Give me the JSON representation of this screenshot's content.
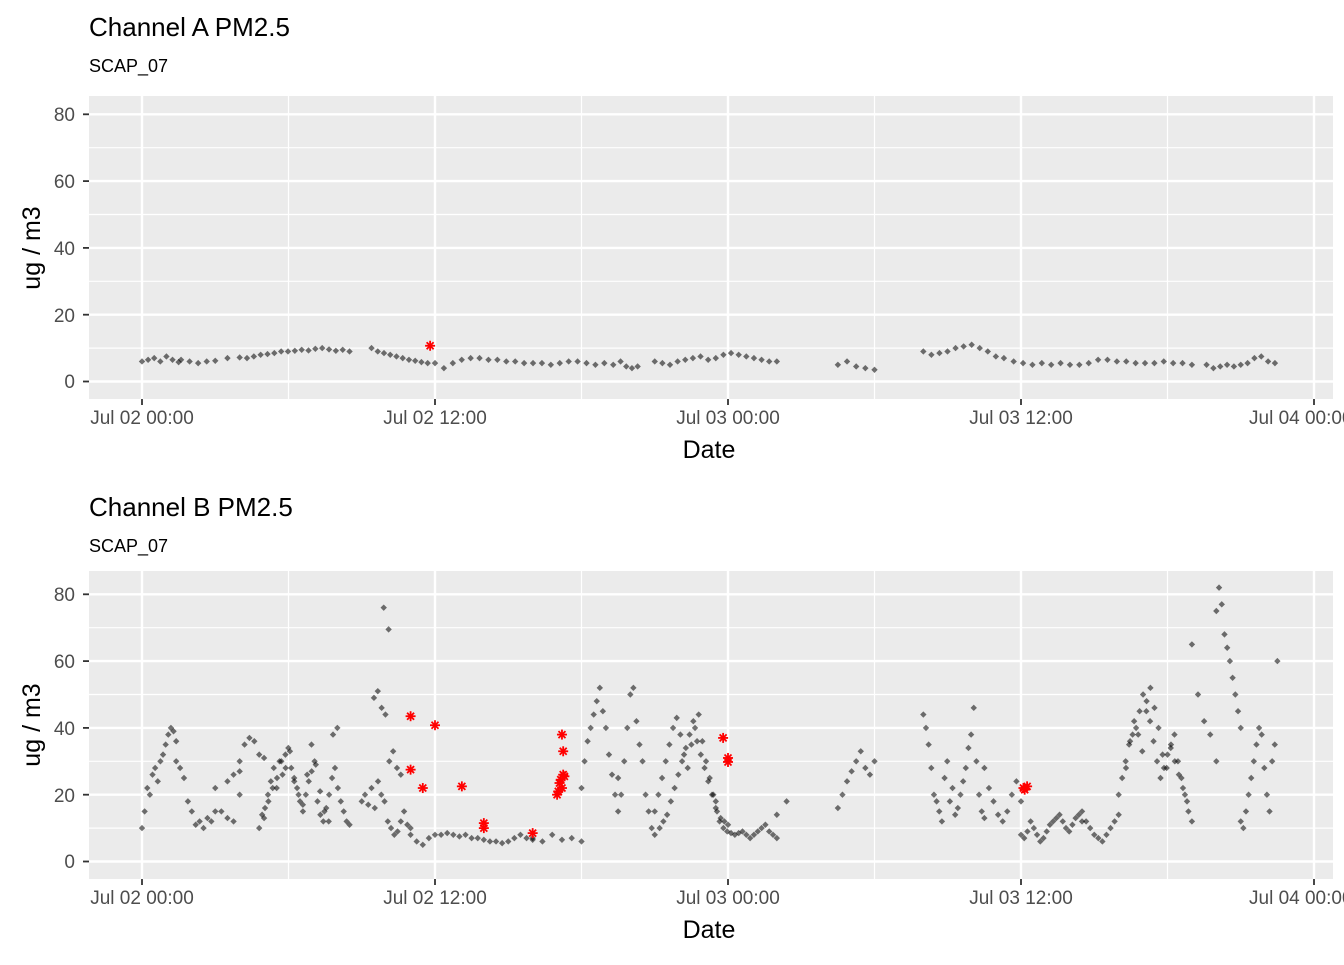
{
  "chart_data": [
    {
      "type": "scatter",
      "title": "Channel A PM2.5",
      "subtitle": "SCAP_07",
      "xlabel": "Date",
      "ylabel": "ug / m3",
      "ylim": [
        -4,
        86
      ],
      "y_ticks": [
        0,
        20,
        40,
        60,
        80
      ],
      "x_ticks": [
        "Jul 02 00:00",
        "Jul 02 12:00",
        "Jul 03 00:00",
        "Jul 03 12:00",
        "Jul 04 00:00"
      ],
      "x_hours_range": [
        -2.6,
        48.3
      ],
      "x_unit": "hours since Jul 02 00:00",
      "grid": true,
      "colors": {
        "panel": "#ebebeb",
        "grid": "#ffffff",
        "points": "#000000",
        "outliers": "#ff0000"
      },
      "series": [
        {
          "style": "small gray diamonds",
          "segments": [
            {
              "start": 0.0,
              "end": 1.5,
              "values": [
                6,
                6.5,
                7,
                6,
                7.5,
                6.5,
                5.8
              ]
            },
            {
              "start": 1.6,
              "end": 3.0,
              "values": [
                6.5,
                6,
                5.5,
                6,
                6.2
              ]
            },
            {
              "start": 3.5,
              "end": 4.0,
              "values": [
                7,
                7.2
              ]
            },
            {
              "start": 4.3,
              "end": 8.5,
              "values": [
                7,
                7.5,
                8,
                8.2,
                8.5,
                9,
                9,
                9.2,
                9.5,
                9.3,
                9.8,
                10,
                9.6,
                9.2,
                9.5,
                9
              ]
            },
            {
              "start": 9.4,
              "end": 11.7,
              "values": [
                10,
                9,
                8.5,
                8,
                7.5,
                7,
                6.5,
                6.2,
                5.8,
                5.5
              ]
            },
            {
              "start": 12.0,
              "end": 19.3,
              "values": [
                5.5,
                4,
                5.5,
                6.5,
                7,
                7,
                6.5,
                6.5,
                6,
                6,
                5.5,
                5.5,
                5.5,
                5,
                5.5,
                6,
                6,
                5.5,
                5,
                5.5,
                5
              ]
            },
            {
              "start": 19.6,
              "end": 20.3,
              "values": [
                6,
                4.5,
                4,
                4.5
              ]
            },
            {
              "start": 21.0,
              "end": 26.0,
              "values": [
                6,
                5.5,
                5,
                6,
                6.5,
                7,
                7.5,
                6.5,
                7,
                8,
                8.5,
                8,
                7.5,
                7,
                6.5,
                6,
                6
              ]
            },
            {
              "start": 28.5,
              "end": 30.0,
              "values": [
                5,
                6,
                4.5,
                4,
                3.5
              ]
            },
            {
              "start": 32.0,
              "end": 35.3,
              "values": [
                9,
                8,
                8.5,
                9,
                10,
                10.5,
                11,
                10,
                9,
                7.5,
                7
              ]
            },
            {
              "start": 35.7,
              "end": 43.0,
              "values": [
                6,
                5.5,
                5,
                5.5,
                5,
                5.5,
                5,
                5,
                5.5,
                6.5,
                6.5,
                6,
                6,
                5.5,
                5.5,
                5.5,
                6,
                5.5,
                5.5,
                5
              ]
            },
            {
              "start": 43.6,
              "end": 46.4,
              "values": [
                5,
                4,
                4.5,
                5,
                4.5,
                5,
                5.5,
                7,
                7.5,
                6,
                5.5
              ]
            }
          ]
        },
        {
          "style": "red asterisks",
          "points": [
            {
              "x": 11.8,
              "y": 10.7
            }
          ]
        }
      ]
    },
    {
      "type": "scatter",
      "title": "Channel B PM2.5",
      "subtitle": "SCAP_07",
      "xlabel": "Date",
      "ylabel": "ug / m3",
      "ylim": [
        -4,
        86
      ],
      "y_ticks": [
        0,
        20,
        40,
        60,
        80
      ],
      "x_ticks": [
        "Jul 02 00:00",
        "Jul 02 12:00",
        "Jul 03 00:00",
        "Jul 03 12:00",
        "Jul 04 00:00"
      ],
      "x_hours_range": [
        -2.6,
        48.3
      ],
      "x_unit": "hours since Jul 02 00:00",
      "grid": true,
      "colors": {
        "panel": "#ebebeb",
        "grid": "#ffffff",
        "points": "#000000",
        "outliers": "#ff0000"
      },
      "series": [
        {
          "style": "small gray diamonds",
          "segments": [
            {
              "start": 0.0,
              "end": 1.4,
              "values": [
                10,
                15,
                22,
                20,
                26,
                28,
                24,
                30,
                32,
                35,
                38,
                40,
                39,
                36
              ]
            },
            {
              "start": 1.4,
              "end": 3.0,
              "values": [
                30,
                28,
                25,
                18,
                15,
                11,
                12,
                10,
                13,
                12,
                15
              ]
            },
            {
              "start": 3.0,
              "end": 4.0,
              "values": [
                22,
                15,
                13,
                12,
                20
              ]
            },
            {
              "start": 3.5,
              "end": 4.0,
              "values": [
                24,
                26,
                27
              ]
            },
            {
              "start": 4.0,
              "end": 5.0,
              "values": [
                30,
                35,
                37,
                36,
                32,
                31
              ]
            },
            {
              "start": 4.8,
              "end": 8.5,
              "values": [
                10,
                14,
                16,
                20,
                24,
                28,
                22,
                30,
                26,
                32,
                34,
                28,
                25,
                22,
                18,
                15,
                20,
                24,
                27,
                30,
                18,
                14,
                12,
                16,
                20,
                25,
                28,
                22,
                18,
                15,
                12,
                11
              ]
            },
            {
              "start": 5.0,
              "end": 8.0,
              "values": [
                13,
                18,
                22,
                25,
                30,
                28,
                33,
                24,
                20,
                17,
                26,
                35,
                29,
                21,
                15,
                12,
                38,
                40
              ]
            },
            {
              "start": 9.0,
              "end": 11.0,
              "values": [
                18,
                20,
                17,
                22,
                16,
                24,
                20,
                18,
                12,
                10,
                8,
                9,
                12,
                15,
                11,
                10
              ]
            },
            {
              "start": 9.5,
              "end": 10.6,
              "values": [
                49,
                51,
                46,
                44,
                30,
                33,
                28,
                26
              ]
            },
            {
              "start": 9.9,
              "end": 10.1,
              "values": [
                76,
                69.5
              ]
            },
            {
              "start": 11.0,
              "end": 16.0,
              "values": [
                8,
                6,
                5,
                7,
                8,
                8,
                8.5,
                8,
                7.5,
                8,
                7,
                7,
                6.5,
                6,
                6,
                5.5,
                6,
                7,
                8,
                7,
                6.5
              ]
            },
            {
              "start": 16.0,
              "end": 18.0,
              "values": [
                7,
                6,
                8,
                6.5,
                7,
                6
              ]
            },
            {
              "start": 18.0,
              "end": 19.5,
              "values": [
                22,
                30,
                36,
                40,
                44,
                48,
                52,
                45,
                40,
                32,
                26,
                20,
                15
              ]
            },
            {
              "start": 19.5,
              "end": 21.0,
              "values": [
                25,
                20,
                30,
                40,
                50,
                52,
                42,
                35,
                30,
                20,
                15,
                10,
                8
              ]
            },
            {
              "start": 21.0,
              "end": 24.0,
              "values": [
                15,
                20,
                25,
                30,
                35,
                40,
                43,
                38,
                32,
                28,
                35,
                40,
                44,
                36,
                30,
                25,
                20,
                15,
                13,
                12,
                11
              ]
            },
            {
              "start": 21.2,
              "end": 23.5,
              "values": [
                10,
                12,
                14,
                18,
                22,
                26,
                30,
                34,
                38,
                42,
                36,
                32,
                28,
                24,
                20,
                16
              ]
            },
            {
              "start": 23.5,
              "end": 26.0,
              "values": [
                18,
                12,
                10,
                9,
                8.5,
                8,
                8.5,
                9,
                8,
                7,
                8,
                9,
                10,
                11,
                9,
                8,
                7
              ]
            },
            {
              "start": 26.0,
              "end": 26.4,
              "values": [
                14,
                18
              ]
            },
            {
              "start": 28.5,
              "end": 30.0,
              "values": [
                16,
                20,
                24,
                27,
                30,
                33,
                28,
                26,
                30
              ]
            },
            {
              "start": 32.0,
              "end": 34.5,
              "values": [
                44,
                40,
                35,
                28,
                20,
                18,
                15,
                12,
                25,
                30,
                18,
                22,
                14,
                16,
                20,
                24,
                28,
                34,
                38,
                46,
                30,
                20,
                15,
                13
              ]
            },
            {
              "start": 34.5,
              "end": 36.0,
              "values": [
                28,
                22,
                18,
                14,
                12,
                15,
                20,
                24,
                18
              ]
            },
            {
              "start": 36.0,
              "end": 38.5,
              "values": [
                8,
                7,
                9,
                12,
                10,
                8,
                6,
                7,
                9,
                11,
                12,
                13,
                14,
                12,
                10,
                9,
                11,
                13,
                14,
                12
              ]
            },
            {
              "start": 38.5,
              "end": 40.0,
              "values": [
                15,
                12,
                10,
                8,
                7,
                6,
                8,
                10,
                12,
                14
              ]
            },
            {
              "start": 40.0,
              "end": 43.0,
              "values": [
                20,
                25,
                30,
                35,
                38,
                40,
                45,
                50,
                48,
                42,
                36,
                30,
                25,
                28,
                32,
                35,
                38,
                30,
                25,
                20,
                15,
                12
              ]
            },
            {
              "start": 40.3,
              "end": 42.8,
              "values": [
                28,
                36,
                42,
                38,
                33,
                45,
                52,
                46,
                40,
                32,
                28,
                34,
                30,
                26,
                22,
                18
              ]
            },
            {
              "start": 43.0,
              "end": 44.0,
              "values": [
                65,
                50,
                42,
                38,
                30
              ]
            },
            {
              "start": 44.0,
              "end": 45.0,
              "values": [
                75,
                82,
                77,
                68,
                64,
                60,
                55,
                50,
                45,
                40
              ]
            },
            {
              "start": 45.0,
              "end": 46.5,
              "values": [
                12,
                10,
                15,
                20,
                25,
                30,
                35,
                40,
                38,
                28,
                20,
                15,
                30,
                35,
                60
              ]
            }
          ]
        },
        {
          "style": "red asterisks",
          "points": [
            {
              "x": 11.0,
              "y": 43.5
            },
            {
              "x": 11.0,
              "y": 27.5
            },
            {
              "x": 11.5,
              "y": 22.0
            },
            {
              "x": 12.0,
              "y": 40.8
            },
            {
              "x": 13.1,
              "y": 22.5
            },
            {
              "x": 14.0,
              "y": 11.5
            },
            {
              "x": 14.0,
              "y": 10.0
            },
            {
              "x": 16.0,
              "y": 8.5
            },
            {
              "x": 17.0,
              "y": 20.0
            },
            {
              "x": 17.05,
              "y": 21.0
            },
            {
              "x": 17.1,
              "y": 23.5
            },
            {
              "x": 17.15,
              "y": 24.5
            },
            {
              "x": 17.2,
              "y": 22.0
            },
            {
              "x": 17.25,
              "y": 26.0
            },
            {
              "x": 17.3,
              "y": 25.5
            },
            {
              "x": 17.25,
              "y": 33.0
            },
            {
              "x": 17.2,
              "y": 38.0
            },
            {
              "x": 23.8,
              "y": 37.0
            },
            {
              "x": 24.0,
              "y": 31.0
            },
            {
              "x": 24.0,
              "y": 29.8
            },
            {
              "x": 36.1,
              "y": 22.0
            },
            {
              "x": 36.15,
              "y": 21.5
            },
            {
              "x": 36.25,
              "y": 22.5
            }
          ]
        }
      ]
    }
  ]
}
